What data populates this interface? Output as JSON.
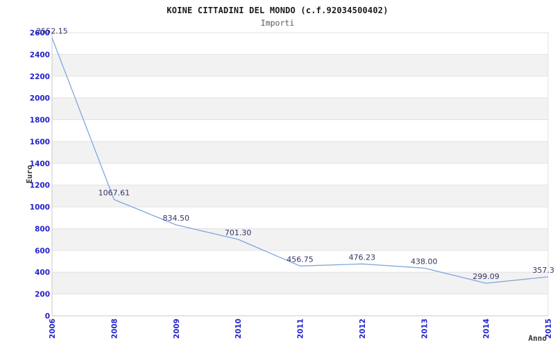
{
  "header": {
    "title": "KOINE CITTADINI DEL MONDO (c.f.92034500402)",
    "subtitle": "Importi"
  },
  "chart_data": {
    "type": "line",
    "title": "KOINE CITTADINI DEL MONDO (c.f.92034500402)",
    "subtitle": "Importi",
    "xlabel": "Anno",
    "ylabel": "Euro",
    "categories": [
      "2006",
      "2008",
      "2009",
      "2010",
      "2011",
      "2012",
      "2013",
      "2014",
      "2015"
    ],
    "series": [
      {
        "name": "Importi",
        "values": [
          2552.15,
          1067.61,
          834.5,
          701.3,
          456.75,
          476.23,
          438.0,
          299.09,
          357.3
        ],
        "point_labels": [
          "2552.15",
          "1067.61",
          "834.50",
          "701.30",
          "456.75",
          "476.23",
          "438.00",
          "299.09",
          "357.3"
        ]
      }
    ],
    "ylim": [
      0,
      2600
    ],
    "ytick_step": 200,
    "yticks": [
      0,
      200,
      400,
      600,
      800,
      1000,
      1200,
      1400,
      1600,
      1800,
      2000,
      2200,
      2400,
      2600
    ],
    "grid": "horizontal-bands",
    "legend": "none",
    "colors": {
      "line": "#7fa8dd",
      "tick_label": "#2222cc",
      "point_label": "#333366",
      "band": "#f2f2f2",
      "gridline": "#e2e2e2",
      "axis": "#c8c8c8",
      "title": "#1a1a1a",
      "subtitle": "#595959",
      "axis_title": "#333333"
    }
  }
}
